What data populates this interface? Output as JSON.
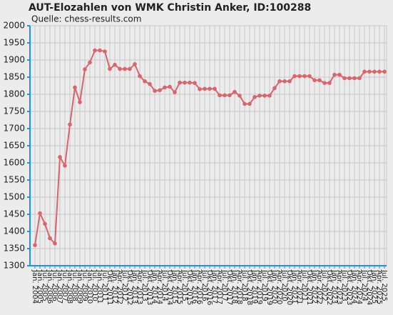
{
  "chart_data": {
    "type": "line",
    "title": "AUT-Elozahlen von WMK Christin Anker, ID:100288",
    "subtitle": "Quelle: chess-results.com",
    "categories": [
      "Jan. 2004",
      "Jan. 2005",
      "Jul. 2005",
      "Jan. 2006",
      "Jul. 2006",
      "Jan. 2007",
      "Jul. 2007",
      "Jan. 2008",
      "Jul. 2008",
      "Jan. 2009",
      "Jul. 2009",
      "Jan. 2010",
      "Jul. 2010",
      "Jan. 2011",
      "Jul. 2011",
      "Okt. 2011",
      "Jan. 2012",
      "Apr. 2012",
      "Jul. 2012",
      "Okt. 2012",
      "Jan. 2013",
      "Apr. 2013",
      "Jul. 2013",
      "Okt. 2013",
      "Jan. 2014",
      "Apr. 2014",
      "Jul. 2014",
      "Okt. 2014",
      "Jan. 2015",
      "Apr. 2015",
      "Jul. 2015",
      "Okt. 2015",
      "Jan. 2016",
      "Apr. 2016",
      "Jul. 2016",
      "Okt. 2016",
      "Jan. 2017",
      "Apr. 2017",
      "Jul. 2017",
      "Okt. 2017",
      "Jan. 2018",
      "Apr. 2018",
      "Jul. 2018",
      "Okt. 2018",
      "Jan. 2019",
      "Apr. 2019",
      "Jul. 2019",
      "Okt. 2019",
      "Jan. 2020",
      "Apr. 2020",
      "Jul. 2020",
      "Okt. 2020",
      "Jan. 2021",
      "Apr. 2021",
      "Jul. 2021",
      "Okt. 2021",
      "Jan. 2022",
      "Apr. 2022",
      "Jul. 2022",
      "Okt. 2022",
      "Jan. 2023",
      "Apr. 2023",
      "Jul. 2023",
      "Okt. 2023",
      "Jan. 2024",
      "Apr. 2024",
      "Jul. 2024",
      "Okt. 2024",
      "Jan. 2025",
      "Apr. 2025",
      "Jul. 2025"
    ],
    "values": [
      1360,
      1453,
      1422,
      1380,
      1365,
      1617,
      1592,
      1712,
      1820,
      1777,
      1873,
      1893,
      1928,
      1928,
      1925,
      1874,
      1886,
      1874,
      1874,
      1874,
      1888,
      1853,
      1838,
      1830,
      1810,
      1812,
      1820,
      1822,
      1806,
      1834,
      1834,
      1834,
      1833,
      1815,
      1816,
      1816,
      1816,
      1797,
      1797,
      1797,
      1807,
      1796,
      1772,
      1772,
      1792,
      1796,
      1796,
      1796,
      1818,
      1838,
      1838,
      1838,
      1853,
      1853,
      1853,
      1853,
      1841,
      1841,
      1833,
      1833,
      1857,
      1857,
      1847,
      1847,
      1847,
      1847,
      1866,
      1866,
      1866,
      1866,
      1866
    ],
    "color": "#d9646a",
    "ylim": [
      1300,
      2000
    ],
    "yticks": [
      1300,
      1350,
      1400,
      1450,
      1500,
      1550,
      1600,
      1650,
      1700,
      1750,
      1800,
      1850,
      1900,
      1950,
      2000
    ],
    "grid": true
  }
}
